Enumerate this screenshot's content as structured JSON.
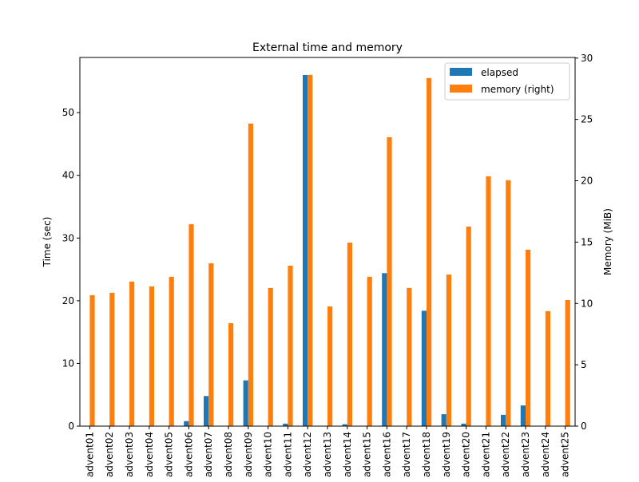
{
  "chart_data": {
    "type": "bar",
    "title": "External time and memory",
    "xlabel": "",
    "ylabel": "Time (sec)",
    "ylabel_right": "Memory (MiB)",
    "ylim": [
      0,
      58.8
    ],
    "ylim_right": [
      0,
      30.05
    ],
    "yticks": [
      0,
      10,
      20,
      30,
      40,
      50
    ],
    "yticks_right": [
      0,
      5,
      10,
      15,
      20,
      25,
      30
    ],
    "grid": false,
    "legend_position": "top-right",
    "categories": [
      "advent01",
      "advent02",
      "advent03",
      "advent04",
      "advent05",
      "advent06",
      "advent07",
      "advent08",
      "advent09",
      "advent10",
      "advent11",
      "advent12",
      "advent13",
      "advent14",
      "advent15",
      "advent16",
      "advent17",
      "advent18",
      "advent19",
      "advent20",
      "advent21",
      "advent22",
      "advent23",
      "advent24",
      "advent25"
    ],
    "series": [
      {
        "name": "elapsed",
        "axis": "left",
        "color": "#1f77b4",
        "values": [
          0.05,
          0.05,
          0.05,
          0.05,
          0.05,
          0.8,
          4.8,
          0.05,
          7.3,
          0.05,
          0.4,
          56.0,
          0.05,
          0.3,
          0.05,
          24.4,
          0.05,
          18.4,
          1.9,
          0.4,
          0.05,
          1.8,
          3.3,
          0.05,
          0.05
        ]
      },
      {
        "name": "memory (right)",
        "axis": "right",
        "color": "#ff7f0e",
        "values": [
          10.67,
          10.87,
          11.78,
          11.39,
          12.17,
          16.46,
          13.27,
          8.39,
          24.66,
          11.26,
          13.08,
          28.63,
          9.76,
          14.96,
          12.17,
          23.55,
          11.26,
          28.37,
          12.36,
          16.27,
          20.36,
          20.04,
          14.38,
          9.37,
          10.28
        ]
      }
    ]
  }
}
